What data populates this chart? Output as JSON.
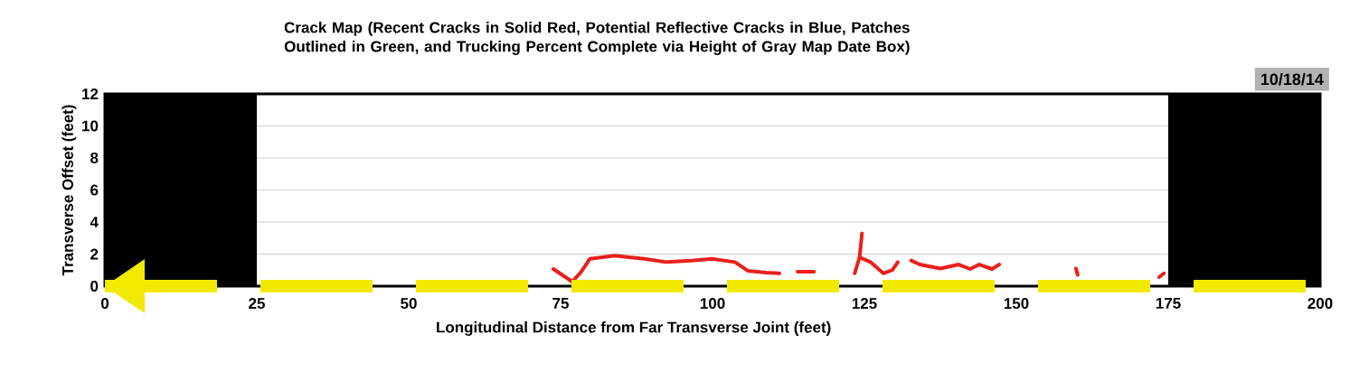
{
  "chart_data": {
    "type": "line",
    "title": "Crack Map (Recent Cracks in Solid Red, Potential Reflective Cracks in Blue, Patches Outlined in Green,  and Trucking Percent Complete via Height of Gray Map Date Box)",
    "xlabel": "Longitudinal Distance from Far Transverse Joint (feet)",
    "ylabel": "Transverse Offset (feet)",
    "xlim": [
      0,
      200
    ],
    "ylim": [
      0,
      12
    ],
    "xticks": [
      0,
      25,
      50,
      75,
      100,
      125,
      150,
      175,
      200
    ],
    "yticks": [
      0,
      2,
      4,
      6,
      8,
      10,
      12
    ],
    "grid": "y",
    "line_style": "solid",
    "annotations": [
      "10/18/14"
    ],
    "bands": [
      {
        "axis": "x",
        "from": 0,
        "to": 25,
        "color": "#000000"
      },
      {
        "axis": "x",
        "from": 175,
        "to": 200,
        "color": "#000000"
      }
    ],
    "ref_lines": [
      {
        "axis": "y",
        "value": 0,
        "color": "#f2ea00",
        "line_style": "dashed"
      }
    ],
    "series": [
      {
        "color": "#e8201c",
        "x": [
          73.8,
          76.9,
          78.3,
          79.8,
          83.9,
          88.8,
          92.4,
          96.9,
          99.9,
          103.7,
          105.8,
          108.8,
          111
        ],
        "values": [
          1.07,
          0.28,
          0.85,
          1.7,
          1.9,
          1.7,
          1.5,
          1.6,
          1.7,
          1.5,
          0.96,
          0.85,
          0.8
        ]
      },
      {
        "color": "#e8201c",
        "x": [
          114,
          116.7
        ],
        "values": [
          0.9,
          0.9
        ]
      },
      {
        "color": "#e8201c",
        "x": [
          123.4,
          124.2,
          124.6
        ],
        "values": [
          0.8,
          1.8,
          3.3
        ]
      },
      {
        "color": "#e8201c",
        "x": [
          124.2,
          126,
          128.1,
          129.6,
          130.5
        ],
        "values": [
          1.8,
          1.5,
          0.8,
          1.0,
          1.5
        ]
      },
      {
        "color": "#e8201c",
        "x": [
          132.7,
          134.1,
          137.5,
          140.5,
          142.4,
          143.9,
          146,
          147.2
        ],
        "values": [
          1.6,
          1.35,
          1.1,
          1.35,
          1.07,
          1.35,
          1.07,
          1.35
        ]
      },
      {
        "color": "#e8201c",
        "x": [
          159.8,
          160.1
        ],
        "values": [
          1.1,
          0.7
        ]
      },
      {
        "color": "#e8201c",
        "x": [
          173.5,
          174.3
        ],
        "values": [
          0.56,
          0.8
        ]
      }
    ]
  }
}
